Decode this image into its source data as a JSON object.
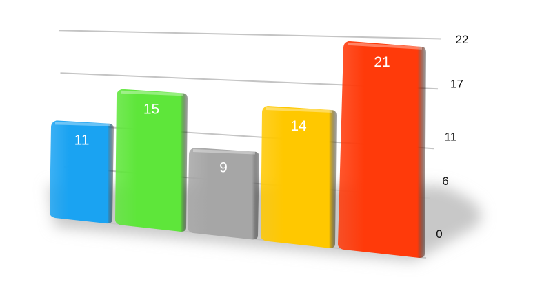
{
  "chart_data": {
    "type": "bar",
    "style": "3d-perspective",
    "categories": [
      "",
      "",
      "",
      "",
      ""
    ],
    "values": [
      11,
      15,
      9,
      14,
      21
    ],
    "data_labels": [
      "11",
      "15",
      "9",
      "14",
      "21"
    ],
    "colors": [
      "#1aa3f2",
      "#5ee63a",
      "#a6a6a6",
      "#ffc800",
      "#ff3a0a"
    ],
    "y_ticks": [
      0,
      6,
      11,
      17,
      22
    ],
    "y_tick_labels": [
      "0",
      "6",
      "11",
      "17",
      "22"
    ],
    "ylim": [
      0,
      22
    ],
    "y_axis_position": "right",
    "grid": true,
    "legend": "none",
    "title": "",
    "xlabel": "",
    "ylabel": ""
  }
}
